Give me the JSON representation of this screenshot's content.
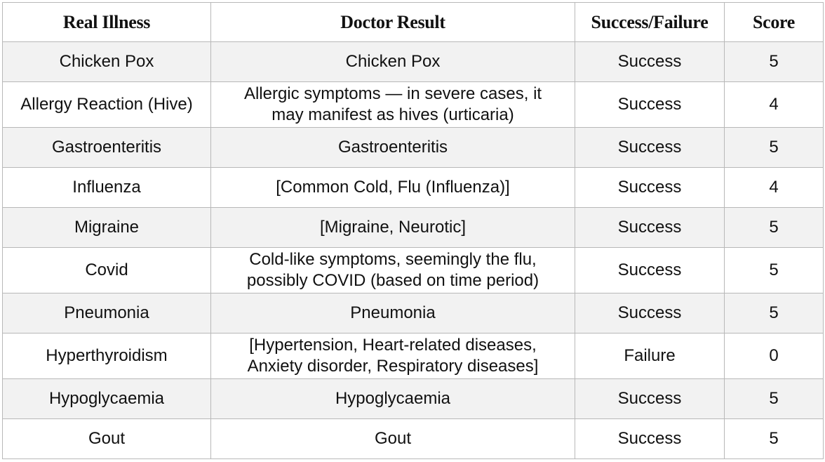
{
  "table": {
    "headers": [
      "Real Illness",
      "Doctor Result",
      "Success/Failure",
      "Score"
    ],
    "rows": [
      {
        "illness": "Chicken Pox",
        "doctor_result": [
          "Chicken Pox"
        ],
        "outcome": "Success",
        "score": "5"
      },
      {
        "illness": "Allergy Reaction (Hive)",
        "doctor_result": [
          "Allergic symptoms — in severe cases, it",
          "may manifest as hives (urticaria)"
        ],
        "outcome": "Success",
        "score": "4"
      },
      {
        "illness": "Gastroenteritis",
        "doctor_result": [
          "Gastroenteritis"
        ],
        "outcome": "Success",
        "score": "5"
      },
      {
        "illness": "Influenza",
        "doctor_result": [
          "[Common Cold, Flu (Influenza)]"
        ],
        "outcome": "Success",
        "score": "4"
      },
      {
        "illness": "Migraine",
        "doctor_result": [
          "[Migraine, Neurotic]"
        ],
        "outcome": "Success",
        "score": "5"
      },
      {
        "illness": "Covid",
        "doctor_result": [
          "Cold-like symptoms, seemingly the flu,",
          "possibly COVID (based on time period)"
        ],
        "outcome": "Success",
        "score": "5"
      },
      {
        "illness": "Pneumonia",
        "doctor_result": [
          "Pneumonia"
        ],
        "outcome": "Success",
        "score": "5"
      },
      {
        "illness": "Hyperthyroidism",
        "doctor_result": [
          "[Hypertension, Heart-related diseases,",
          "Anxiety disorder, Respiratory diseases]"
        ],
        "outcome": "Failure",
        "score": "0"
      },
      {
        "illness": "Hypoglycaemia",
        "doctor_result": [
          "Hypoglycaemia"
        ],
        "outcome": "Success",
        "score": "5"
      },
      {
        "illness": "Gout",
        "doctor_result": [
          "Gout"
        ],
        "outcome": "Success",
        "score": "5"
      }
    ]
  }
}
